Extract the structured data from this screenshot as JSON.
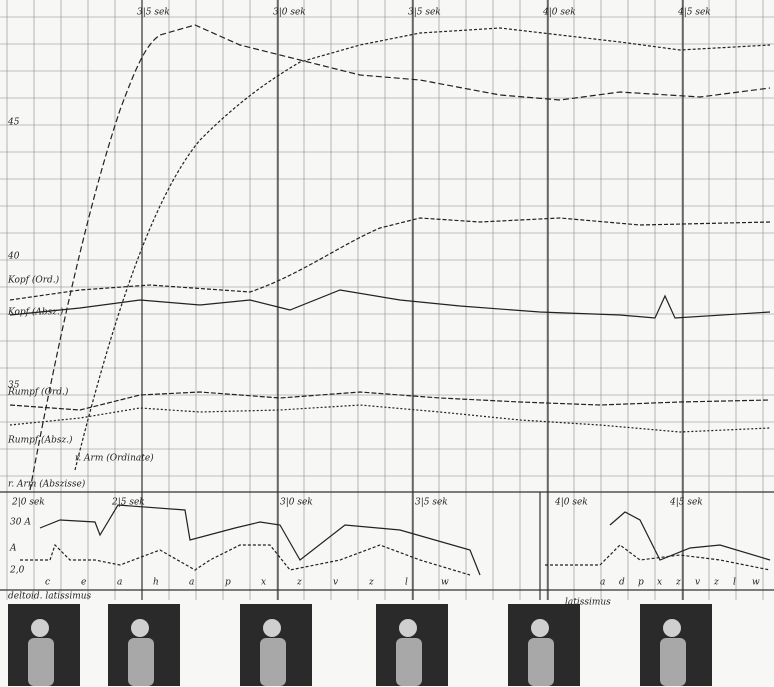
{
  "top_axis": {
    "time_labels": [
      "3|5 sek",
      "3|0 sek",
      "3|5 sek",
      "4|0 sek",
      "4|5 sek"
    ]
  },
  "left_axis": {
    "labels": [
      "45",
      "40",
      "35"
    ]
  },
  "curve_labels": {
    "head_ordinate": "Kopf (Ord.)",
    "head_abscissa": "Kopf (Absz.)",
    "trunk_ordinate": "Rumpf (Ord.)",
    "trunk_abscissa": "Rumpf (Absz.)",
    "arm_ordinate": "r. Arm (Ordinate)",
    "arm_abscissa": "r. Arm (Abszisse)"
  },
  "bottom_panel": {
    "time_labels": [
      "2|0 sek",
      "2|5 sek",
      "3|0 sek",
      "3|5 sek",
      "4|0 sek",
      "4|5 sek"
    ],
    "left_labels": [
      "30 A",
      "A",
      "2,0"
    ],
    "segment_labels": [
      "c",
      "e",
      "a",
      "h",
      "a",
      "p",
      "x",
      "z",
      "v",
      "z",
      "l",
      "w",
      "a",
      "d",
      "p",
      "x",
      "z",
      "v",
      "z",
      "l",
      "w"
    ],
    "muscle_labels": [
      "deltoid.  latissimus",
      "latissimus"
    ]
  }
}
